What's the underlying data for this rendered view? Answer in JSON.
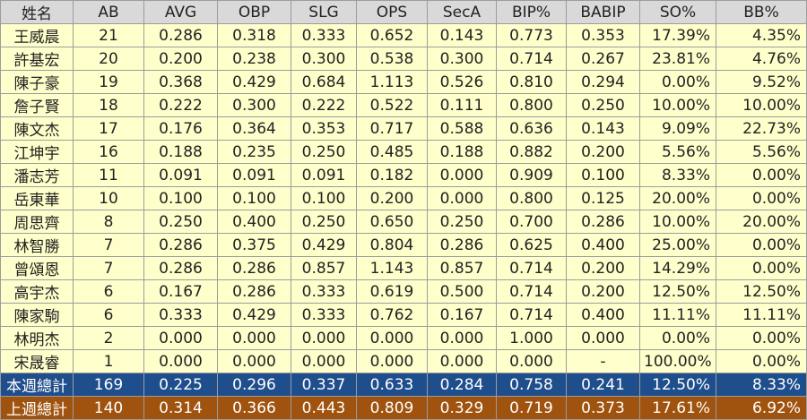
{
  "table": {
    "headers": [
      "姓名",
      "AB",
      "AVG",
      "OBP",
      "SLG",
      "OPS",
      "SecA",
      "BIP%",
      "BABIP",
      "SO%",
      "BB%"
    ],
    "rows": [
      [
        "王威晨",
        "21",
        "0.286",
        "0.318",
        "0.333",
        "0.652",
        "0.143",
        "0.773",
        "0.353",
        "17.39%",
        "4.35%"
      ],
      [
        "許基宏",
        "20",
        "0.200",
        "0.238",
        "0.300",
        "0.538",
        "0.300",
        "0.714",
        "0.267",
        "23.81%",
        "4.76%"
      ],
      [
        "陳子豪",
        "19",
        "0.368",
        "0.429",
        "0.684",
        "1.113",
        "0.526",
        "0.810",
        "0.294",
        "0.00%",
        "9.52%"
      ],
      [
        "詹子賢",
        "18",
        "0.222",
        "0.300",
        "0.222",
        "0.522",
        "0.111",
        "0.800",
        "0.250",
        "10.00%",
        "10.00%"
      ],
      [
        "陳文杰",
        "17",
        "0.176",
        "0.364",
        "0.353",
        "0.717",
        "0.588",
        "0.636",
        "0.143",
        "9.09%",
        "22.73%"
      ],
      [
        "江坤宇",
        "16",
        "0.188",
        "0.235",
        "0.250",
        "0.485",
        "0.188",
        "0.882",
        "0.200",
        "5.56%",
        "5.56%"
      ],
      [
        "潘志芳",
        "11",
        "0.091",
        "0.091",
        "0.091",
        "0.182",
        "0.000",
        "0.909",
        "0.100",
        "8.33%",
        "0.00%"
      ],
      [
        "岳東華",
        "10",
        "0.100",
        "0.100",
        "0.100",
        "0.200",
        "0.000",
        "0.800",
        "0.125",
        "20.00%",
        "0.00%"
      ],
      [
        "周思齊",
        "8",
        "0.250",
        "0.400",
        "0.250",
        "0.650",
        "0.250",
        "0.700",
        "0.286",
        "10.00%",
        "20.00%"
      ],
      [
        "林智勝",
        "7",
        "0.286",
        "0.375",
        "0.429",
        "0.804",
        "0.286",
        "0.625",
        "0.400",
        "25.00%",
        "0.00%"
      ],
      [
        "曾頌恩",
        "7",
        "0.286",
        "0.286",
        "0.857",
        "1.143",
        "0.857",
        "0.714",
        "0.200",
        "14.29%",
        "0.00%"
      ],
      [
        "高宇杰",
        "6",
        "0.167",
        "0.286",
        "0.333",
        "0.619",
        "0.500",
        "0.714",
        "0.200",
        "12.50%",
        "12.50%"
      ],
      [
        "陳家駒",
        "6",
        "0.333",
        "0.429",
        "0.333",
        "0.762",
        "0.167",
        "0.714",
        "0.400",
        "11.11%",
        "11.11%"
      ],
      [
        "林明杰",
        "2",
        "0.000",
        "0.000",
        "0.000",
        "0.000",
        "0.000",
        "1.000",
        "0.000",
        "0.00%",
        "0.00%"
      ],
      [
        "宋晟睿",
        "1",
        "0.000",
        "0.000",
        "0.000",
        "0.000",
        "0.000",
        "0.000",
        "-",
        "100.00%",
        "0.00%"
      ]
    ],
    "totals": {
      "this_week": [
        "本週總計",
        "169",
        "0.225",
        "0.296",
        "0.337",
        "0.633",
        "0.284",
        "0.758",
        "0.241",
        "12.50%",
        "8.33%"
      ],
      "last_week": [
        "上週總計",
        "140",
        "0.314",
        "0.366",
        "0.443",
        "0.809",
        "0.329",
        "0.719",
        "0.373",
        "17.61%",
        "6.92%"
      ]
    },
    "colors": {
      "header_bg": "#d9d9d9",
      "row_bg": "#ffffcc",
      "this_week_bg": "#1f4e8c",
      "last_week_bg": "#a0530e"
    }
  }
}
